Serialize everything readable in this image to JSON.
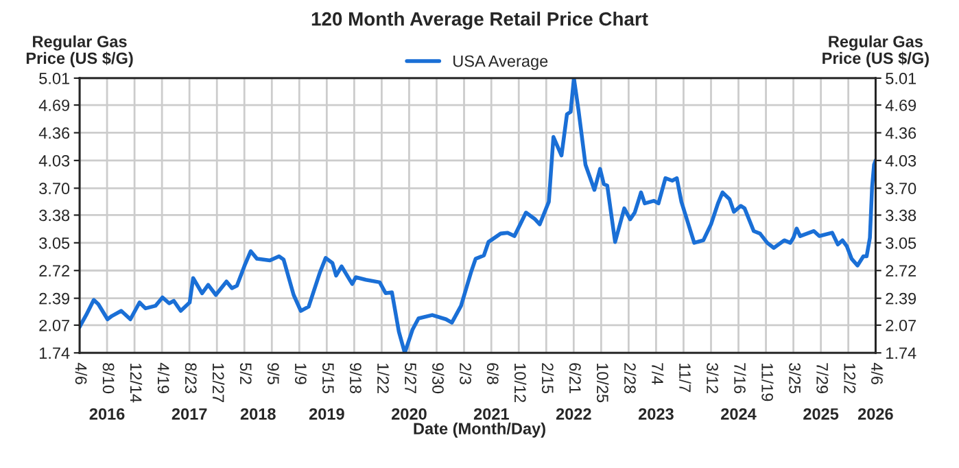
{
  "chart_data": {
    "type": "line",
    "title": "120 Month Average Retail Price Chart",
    "xlabel": "Date (Month/Day)",
    "ylabel": "Regular Gas\nPrice (US $/G)",
    "y2label": "Regular Gas\nPrice (US $/G)",
    "annotations": [
      "2016",
      "2017",
      "2018",
      "2019",
      "2020",
      "2021",
      "2022",
      "2023",
      "2024",
      "2025",
      "2026"
    ],
    "x": [
      "2016-04-06",
      "2016-05-06",
      "2016-06-10",
      "2016-07-01",
      "2016-08-12",
      "2016-09-02",
      "2016-10-14",
      "2016-11-25",
      "2017-01-06",
      "2017-02-02",
      "2017-03-20",
      "2017-04-21",
      "2017-05-22",
      "2017-06-12",
      "2017-07-14",
      "2017-08-24",
      "2017-09-09",
      "2017-10-20",
      "2017-11-17",
      "2017-12-22",
      "2018-02-09",
      "2018-03-06",
      "2018-03-29",
      "2018-05-03",
      "2018-05-31",
      "2018-06-29",
      "2018-08-27",
      "2018-10-08",
      "2018-10-29",
      "2018-12-14",
      "2019-01-16",
      "2019-02-21",
      "2019-04-14",
      "2019-05-10",
      "2019-06-10",
      "2019-06-27",
      "2019-07-22",
      "2019-09-09",
      "2019-09-25",
      "2019-11-11",
      "2020-01-13",
      "2020-02-09",
      "2020-03-09",
      "2020-04-10",
      "2020-05-07",
      "2020-06-12",
      "2020-07-09",
      "2020-09-10",
      "2020-11-12",
      "2020-12-09",
      "2021-01-20",
      "2021-03-07",
      "2021-03-28",
      "2021-05-05",
      "2021-05-26",
      "2021-07-21",
      "2021-08-22",
      "2021-09-22",
      "2021-11-14",
      "2021-12-26",
      "2022-01-16",
      "2022-02-27",
      "2022-03-20",
      "2022-04-26",
      "2022-05-21",
      "2022-06-07",
      "2022-06-22",
      "2022-07-13",
      "2022-08-14",
      "2022-09-24",
      "2022-10-20",
      "2022-11-06",
      "2022-11-22",
      "2022-12-28",
      "2023-02-08",
      "2023-03-07",
      "2023-03-28",
      "2023-04-26",
      "2023-05-13",
      "2023-06-24",
      "2023-07-15",
      "2023-08-16",
      "2023-09-16",
      "2023-10-07",
      "2023-10-28",
      "2023-12-09",
      "2023-12-26",
      "2024-02-06",
      "2024-03-12",
      "2024-04-13",
      "2024-05-04",
      "2024-06-05",
      "2024-06-25",
      "2024-07-27",
      "2024-08-13",
      "2024-09-24",
      "2024-10-23",
      "2024-11-25",
      "2024-12-25",
      "2025-02-11",
      "2025-03-11",
      "2025-03-25",
      "2025-04-09",
      "2025-04-25",
      "2025-06-27",
      "2025-07-22",
      "2025-09-19",
      "2025-10-15",
      "2025-11-05",
      "2025-11-25",
      "2025-12-17",
      "2026-01-13",
      "2026-02-09",
      "2026-02-24",
      "2026-03-11",
      "2026-03-21",
      "2026-03-30",
      "2026-04-06"
    ],
    "series": [
      {
        "name": "USA Average",
        "color": "#1a6fd6",
        "values": [
          2.05,
          2.19,
          2.37,
          2.32,
          2.14,
          2.18,
          2.24,
          2.14,
          2.34,
          2.27,
          2.3,
          2.4,
          2.33,
          2.36,
          2.24,
          2.34,
          2.63,
          2.45,
          2.55,
          2.43,
          2.59,
          2.51,
          2.54,
          2.78,
          2.95,
          2.86,
          2.84,
          2.89,
          2.85,
          2.43,
          2.24,
          2.29,
          2.7,
          2.87,
          2.81,
          2.66,
          2.77,
          2.56,
          2.64,
          2.61,
          2.58,
          2.45,
          2.46,
          1.99,
          1.74,
          2.02,
          2.15,
          2.19,
          2.14,
          2.1,
          2.3,
          2.7,
          2.86,
          2.9,
          3.06,
          3.16,
          3.17,
          3.13,
          3.41,
          3.33,
          3.27,
          3.54,
          4.31,
          4.09,
          4.58,
          4.61,
          5.01,
          4.63,
          3.98,
          3.68,
          3.93,
          3.75,
          3.73,
          3.06,
          3.46,
          3.33,
          3.41,
          3.65,
          3.52,
          3.55,
          3.52,
          3.82,
          3.79,
          3.82,
          3.54,
          3.19,
          3.05,
          3.08,
          3.27,
          3.52,
          3.65,
          3.57,
          3.42,
          3.49,
          3.46,
          3.19,
          3.16,
          3.05,
          2.99,
          3.08,
          3.05,
          3.11,
          3.22,
          3.13,
          3.19,
          3.13,
          3.17,
          3.03,
          3.08,
          3.01,
          2.86,
          2.78,
          2.89,
          2.89,
          3.11,
          3.71,
          3.98,
          4.03
        ]
      }
    ],
    "xlim": [
      "2016-04-06",
      "2026-04-06"
    ],
    "xticks": [
      {
        "value": "2016-04-06",
        "label": "4/6"
      },
      {
        "value": "2016-08-10",
        "label": "8/10"
      },
      {
        "value": "2016-12-14",
        "label": "12/14"
      },
      {
        "value": "2017-04-19",
        "label": "4/19"
      },
      {
        "value": "2017-08-23",
        "label": "8/23"
      },
      {
        "value": "2017-12-27",
        "label": "12/27"
      },
      {
        "value": "2018-05-02",
        "label": "5/2"
      },
      {
        "value": "2018-09-05",
        "label": "9/5"
      },
      {
        "value": "2019-01-09",
        "label": "1/9"
      },
      {
        "value": "2019-05-15",
        "label": "5/15"
      },
      {
        "value": "2019-09-18",
        "label": "9/18"
      },
      {
        "value": "2020-01-22",
        "label": "1/22"
      },
      {
        "value": "2020-05-27",
        "label": "5/27"
      },
      {
        "value": "2020-09-30",
        "label": "9/30"
      },
      {
        "value": "2021-02-03",
        "label": "2/3"
      },
      {
        "value": "2021-06-08",
        "label": "6/8"
      },
      {
        "value": "2021-10-12",
        "label": "10/12"
      },
      {
        "value": "2022-02-15",
        "label": "2/15"
      },
      {
        "value": "2022-06-21",
        "label": "6/21"
      },
      {
        "value": "2022-10-25",
        "label": "10/25"
      },
      {
        "value": "2023-02-28",
        "label": "2/28"
      },
      {
        "value": "2023-07-04",
        "label": "7/4"
      },
      {
        "value": "2023-11-07",
        "label": "11/7"
      },
      {
        "value": "2024-03-12",
        "label": "3/12"
      },
      {
        "value": "2024-07-16",
        "label": "7/16"
      },
      {
        "value": "2024-11-19",
        "label": "11/19"
      },
      {
        "value": "2025-03-25",
        "label": "3/25"
      },
      {
        "value": "2025-07-29",
        "label": "7/29"
      },
      {
        "value": "2025-12-02",
        "label": "12/2"
      },
      {
        "value": "2026-04-06",
        "label": "4/6"
      }
    ],
    "ylim": [
      1.74,
      5.01
    ],
    "yticks": [
      1.74,
      2.07,
      2.39,
      2.72,
      3.05,
      3.38,
      {
        "value": 3.7,
        "label": "3.70"
      },
      4.03,
      4.36,
      4.69,
      5.01
    ],
    "y2lim": [
      1.74,
      5.01
    ],
    "y2ticks": [
      1.74,
      2.07,
      2.39,
      2.72,
      3.05,
      3.38,
      {
        "value": 3.7,
        "label": "3.70"
      },
      4.03,
      4.36,
      4.69,
      5.01
    ],
    "grid": true,
    "legend": "top",
    "marker": "none",
    "line_style": "solid"
  }
}
